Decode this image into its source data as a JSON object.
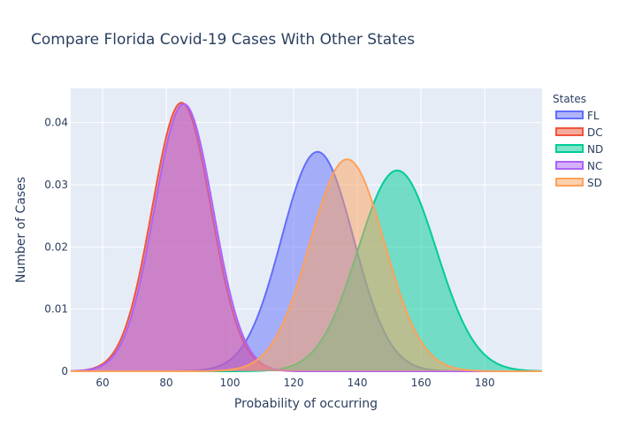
{
  "chart_data": {
    "type": "area",
    "title": "Compare Florida Covid-19 Cases With Other States",
    "xlabel": "Probability of occurring",
    "ylabel": "Number of Cases",
    "xlim": [
      50,
      198
    ],
    "ylim": [
      0,
      0.0455
    ],
    "xticks": [
      60,
      80,
      100,
      120,
      140,
      160,
      180
    ],
    "yticks": [
      0,
      0.01,
      0.02,
      0.03,
      0.04
    ],
    "ytick_labels": [
      "0",
      "0.01",
      "0.02",
      "0.03",
      "0.04"
    ],
    "grid": true,
    "legend_title": "States",
    "legend_position": "top-right",
    "curve_shape": "normal density",
    "series": [
      {
        "name": "FL",
        "color": "#636efa",
        "mean": 127.5,
        "sd": 11.3,
        "peak": 0.0353
      },
      {
        "name": "DC",
        "color": "#ef553b",
        "mean": 84.8,
        "sd": 9.25,
        "peak": 0.0432
      },
      {
        "name": "ND",
        "color": "#00cc96",
        "mean": 152.5,
        "sd": 12.3,
        "peak": 0.0323
      },
      {
        "name": "NC",
        "color": "#ab63fa",
        "mean": 85.5,
        "sd": 9.25,
        "peak": 0.043
      },
      {
        "name": "SD",
        "color": "#ffa15a",
        "mean": 136.8,
        "sd": 11.7,
        "peak": 0.0341
      }
    ]
  }
}
